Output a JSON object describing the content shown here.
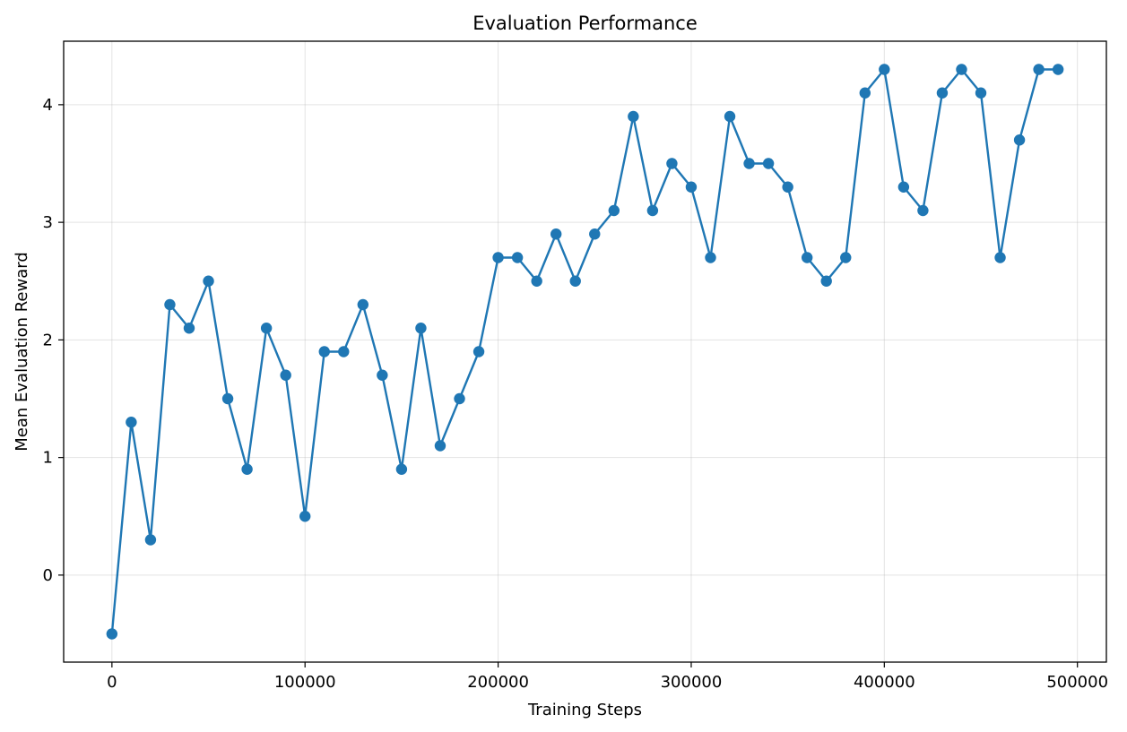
{
  "chart_data": {
    "type": "line",
    "title": "Evaluation Performance",
    "xlabel": "Training Steps",
    "ylabel": "Mean Evaluation Reward",
    "xlim": [
      -25000,
      515000
    ],
    "ylim": [
      -0.74,
      4.54
    ],
    "x_ticks": [
      0,
      100000,
      200000,
      300000,
      400000,
      500000
    ],
    "x_tick_labels": [
      "0",
      "100000",
      "200000",
      "300000",
      "400000",
      "500000"
    ],
    "y_ticks": [
      0,
      1,
      2,
      3,
      4
    ],
    "y_tick_labels": [
      "0",
      "1",
      "2",
      "3",
      "4"
    ],
    "grid": true,
    "legend": "none",
    "series": [
      {
        "color": "#1f77b4",
        "marker": "circle",
        "x": [
          0,
          10000,
          20000,
          30000,
          40000,
          50000,
          60000,
          70000,
          80000,
          90000,
          100000,
          110000,
          120000,
          130000,
          140000,
          150000,
          160000,
          170000,
          180000,
          190000,
          200000,
          210000,
          220000,
          230000,
          240000,
          250000,
          260000,
          270000,
          280000,
          290000,
          300000,
          310000,
          320000,
          330000,
          340000,
          350000,
          360000,
          370000,
          380000,
          390000,
          400000,
          410000,
          420000,
          430000,
          440000,
          450000,
          460000,
          470000,
          480000,
          490000
        ],
        "y": [
          -0.5,
          1.3,
          0.3,
          2.3,
          2.1,
          2.5,
          1.5,
          0.9,
          2.1,
          1.7,
          0.5,
          1.9,
          1.9,
          2.3,
          1.7,
          0.9,
          2.1,
          1.1,
          1.5,
          1.9,
          2.7,
          2.7,
          2.5,
          2.9,
          2.5,
          2.9,
          3.1,
          3.9,
          3.1,
          3.5,
          3.3,
          2.7,
          3.9,
          3.5,
          3.5,
          3.3,
          2.7,
          2.5,
          2.7,
          4.1,
          4.3,
          3.3,
          3.1,
          4.1,
          4.3,
          4.1,
          2.7,
          3.7,
          4.3,
          4.3
        ]
      }
    ]
  }
}
